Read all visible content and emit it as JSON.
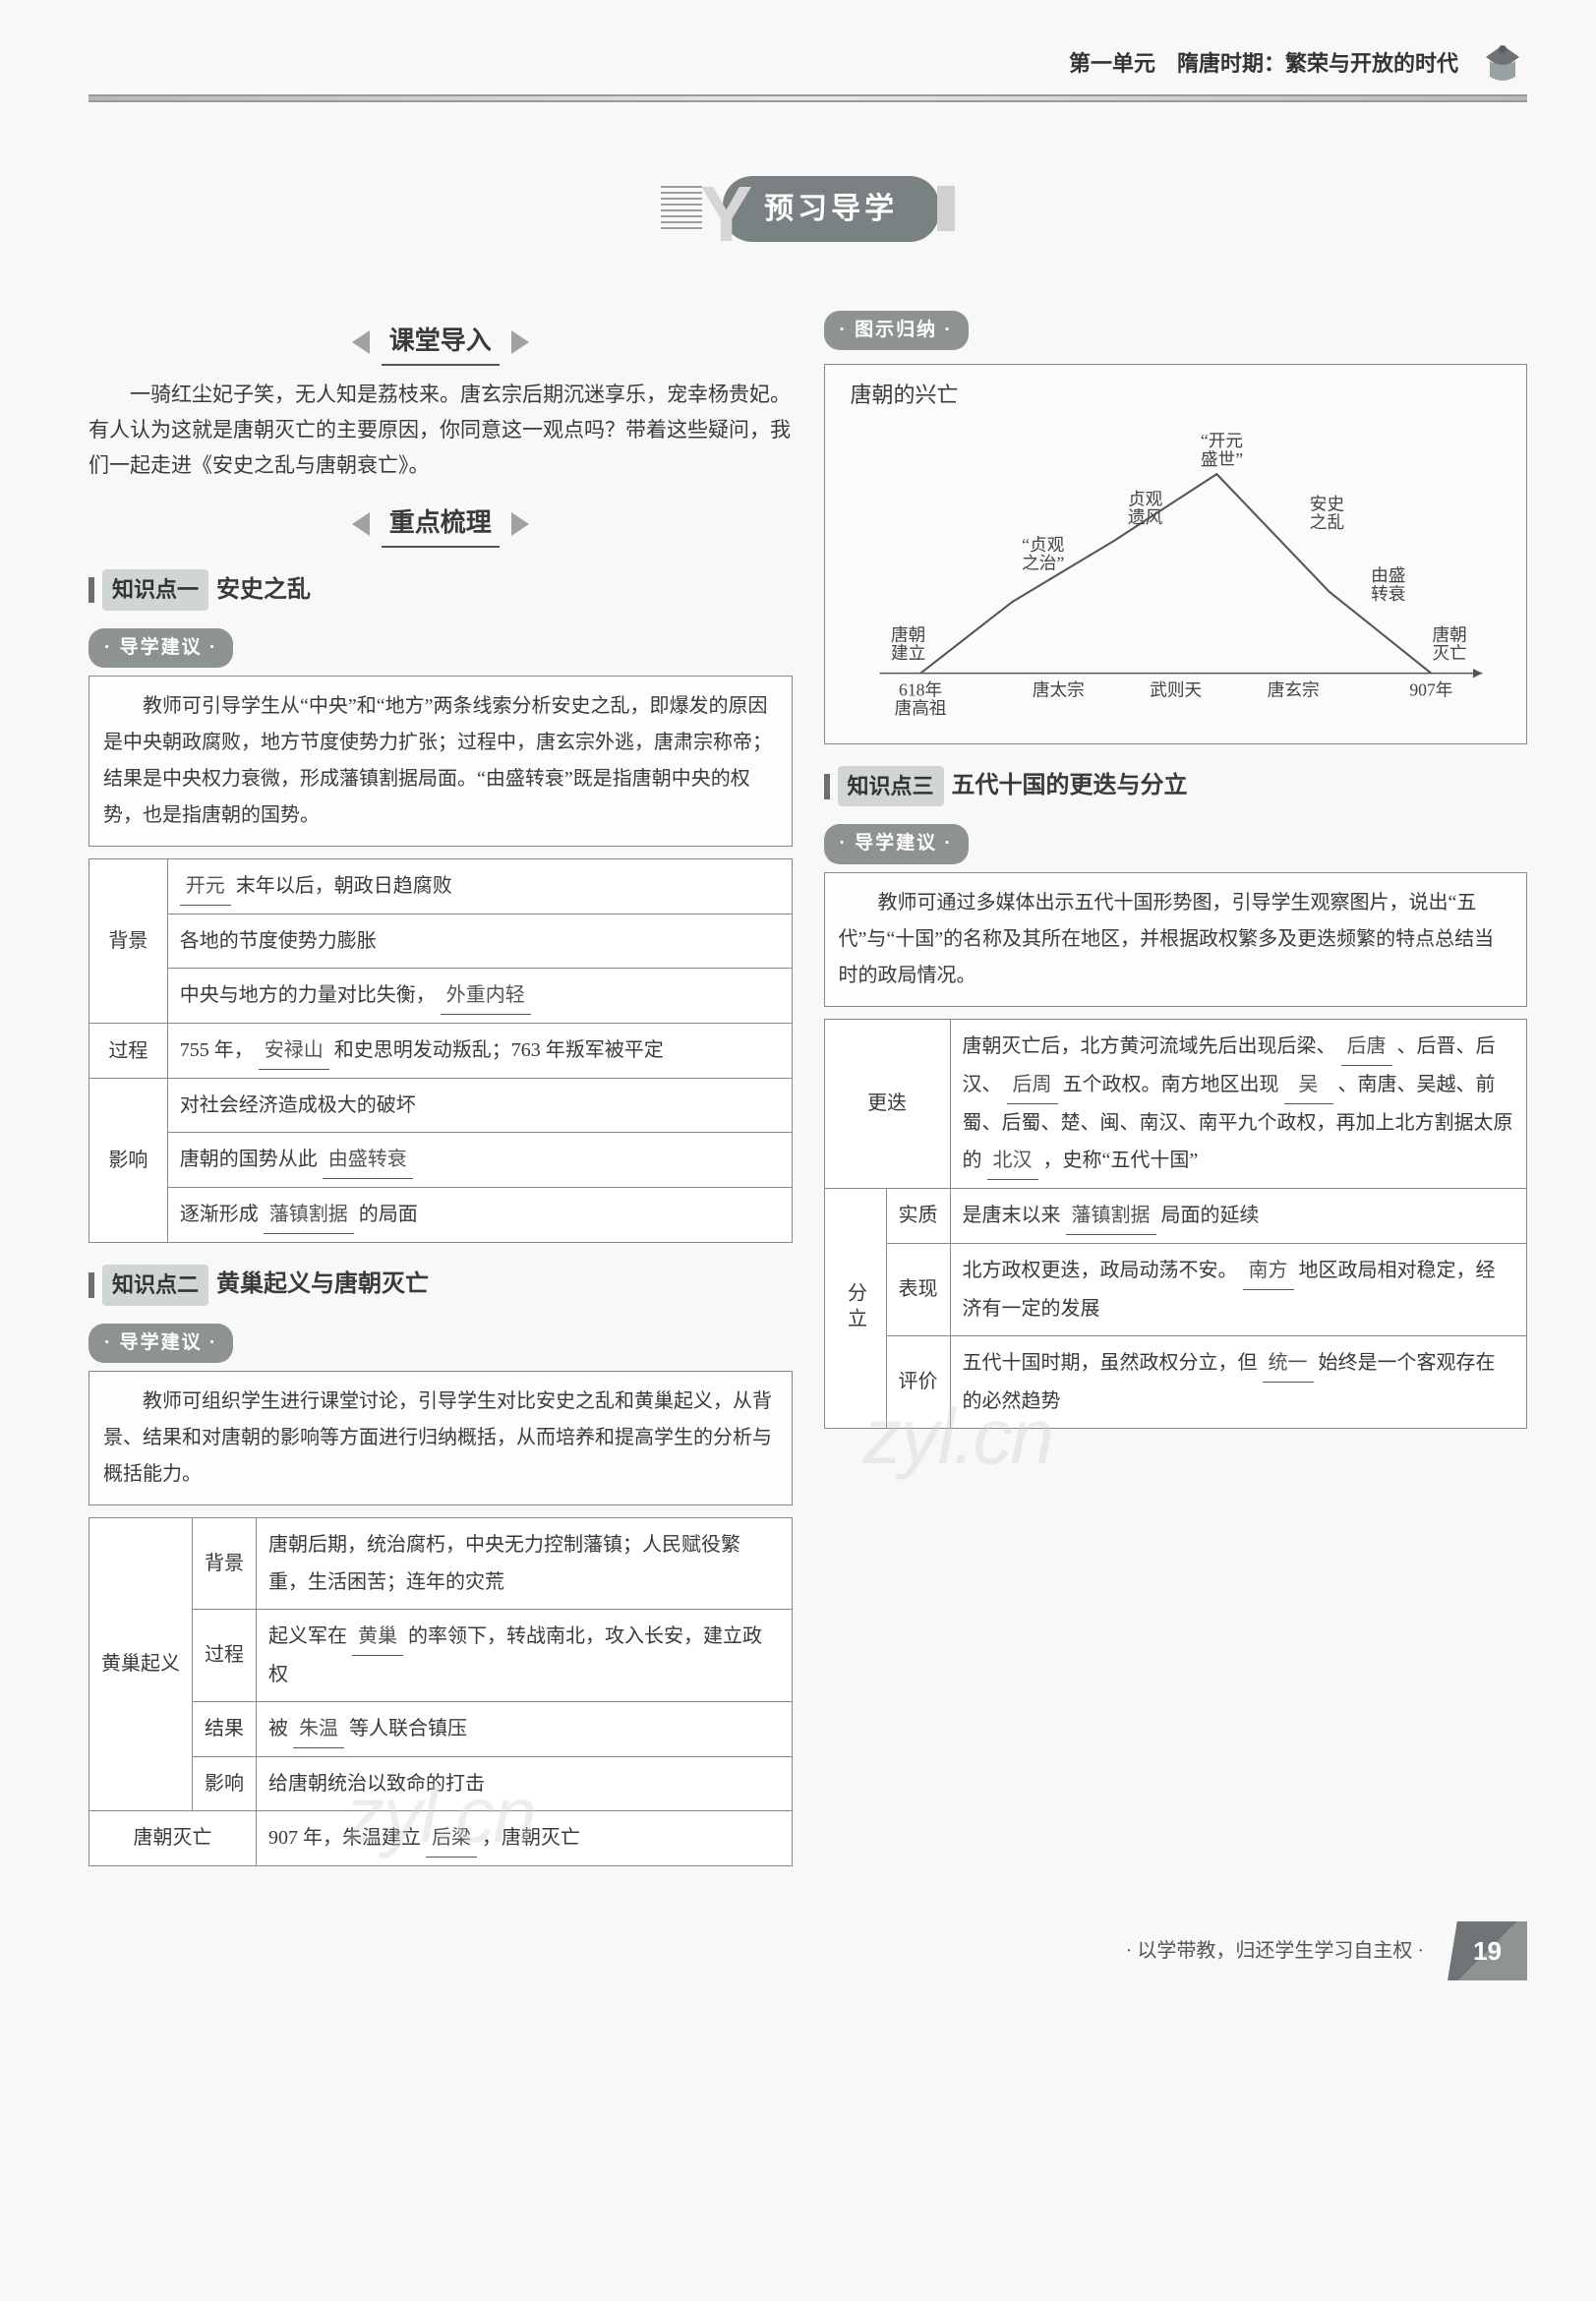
{
  "header": {
    "unit": "第一单元　隋唐时期：繁荣与开放的时代"
  },
  "banner": {
    "title": "预习导学"
  },
  "left": {
    "class_intro_head": "课堂导入",
    "class_intro": "一骑红尘妃子笑，无人知是荔枝来。唐玄宗后期沉迷享乐，宠幸杨贵妃。有人认为这就是唐朝灭亡的主要原因，你同意这一观点吗？带着这些疑问，我们一起走进《安史之乱与唐朝衰亡》。",
    "key_head": "重点梳理",
    "kp1": {
      "tag": "知识点一",
      "name": "安史之乱"
    },
    "advice_pill": "导学建议",
    "adv1": "教师可引导学生从“中央”和“地方”两条线索分析安史之乱，即爆发的原因是中央朝政腐败，地方节度使势力扩张；过程中，唐玄宗外逃，唐肃宗称帝；结果是中央权力衰微，形成藩镇割据局面。“由盛转衰”既是指唐朝中央的权势，也是指唐朝的国势。",
    "t1": {
      "bg_label": "背景",
      "bg_r1a": "开元",
      "bg_r1b": "末年以后，朝政日趋腐败",
      "bg_r2": "各地的节度使势力膨胀",
      "bg_r3a": "中央与地方的力量对比失衡，",
      "bg_r3b": "外重内轻",
      "proc_label": "过程",
      "proc_a": "755 年，",
      "proc_fill": "安禄山",
      "proc_b": "和史思明发动叛乱；763 年叛军被平定",
      "eff_label": "影响",
      "eff_r1": "对社会经济造成极大的破坏",
      "eff_r2a": "唐朝的国势从此",
      "eff_r2b": "由盛转衰",
      "eff_r3a": "逐渐形成",
      "eff_r3b": "藩镇割据",
      "eff_r3c": "的局面"
    },
    "kp2": {
      "tag": "知识点二",
      "name": "黄巢起义与唐朝灭亡"
    },
    "adv2": "教师可组织学生进行课堂讨论，引导学生对比安史之乱和黄巢起义，从背景、结果和对唐朝的影响等方面进行归纳概括，从而培养和提高学生的分析与概括能力。",
    "t2": {
      "row_label": "黄巢起义",
      "bg_label": "背景",
      "bg": "唐朝后期，统治腐朽，中央无力控制藩镇；人民赋役繁重，生活困苦；连年的灾荒",
      "proc_label": "过程",
      "proc_a": "起义军在",
      "proc_fill": "黄巢",
      "proc_b": "的率领下，转战南北，攻入长安，建立政权",
      "res_label": "结果",
      "res_a": "被",
      "res_fill": "朱温",
      "res_b": "等人联合镇压",
      "eff_label": "影响",
      "eff": "给唐朝统治以致命的打击",
      "fall_label": "唐朝灭亡",
      "fall_a": "907 年，朱温建立",
      "fall_fill": "后梁",
      "fall_b": "，唐朝灭亡"
    }
  },
  "right": {
    "illus_pill": "图示归纳",
    "chart": {
      "title": "唐朝的兴亡",
      "axis_start": "618年\n唐高祖",
      "axis_end": "907年",
      "nodes": [
        "唐太宗",
        "武则天",
        "唐玄宗"
      ],
      "labels": {
        "found": "唐朝\n建立",
        "zhenguan": "“贞观\n之治”",
        "yifeng": "贞观\n遗风",
        "kaiyuan": "“开元\n盛世”",
        "anshi": "安史\n之乱",
        "turn": "由盛\n转衰",
        "fall": "唐朝\n灭亡"
      }
    },
    "kp3": {
      "tag": "知识点三",
      "name": "五代十国的更迭与分立"
    },
    "adv3": "教师可通过多媒体出示五代十国形势图，引导学生观察图片，说出“五代”与“十国”的名称及其所在地区，并根据政权繁多及更迭频繁的特点总结当时的政局情况。",
    "t3": {
      "change_label": "更迭",
      "change_a": "唐朝灭亡后，北方黄河流域先后出现后梁、",
      "change_f1": "后唐",
      "change_b": "、后晋、后汉、",
      "change_f2": "后周",
      "change_c": "五个政权。南方地区出现",
      "change_f3": "吴",
      "change_d": "、南唐、吴越、前蜀、后蜀、楚、闽、南汉、南平九个政权，再加上北方割据太原的",
      "change_f4": "北汉",
      "change_e": "，史称“五代十国”",
      "split_label": "分立",
      "essence_label": "实质",
      "essence_a": "是唐末以来",
      "essence_f": "藩镇割据",
      "essence_b": "局面的延续",
      "perf_label": "表现",
      "perf_a": "北方政权更迭，政局动荡不安。",
      "perf_f": "南方",
      "perf_b": "地区政局相对稳定，经济有一定的发展",
      "eval_label": "评价",
      "eval_a": "五代十国时期，虽然政权分立，但",
      "eval_f": "统一",
      "eval_b": "始终是一个客观存在的必然趋势"
    }
  },
  "footer": {
    "motto": "· 以学带教，归还学生学习自主权 ·",
    "page": "19"
  },
  "watermark": "zyl.cn"
}
